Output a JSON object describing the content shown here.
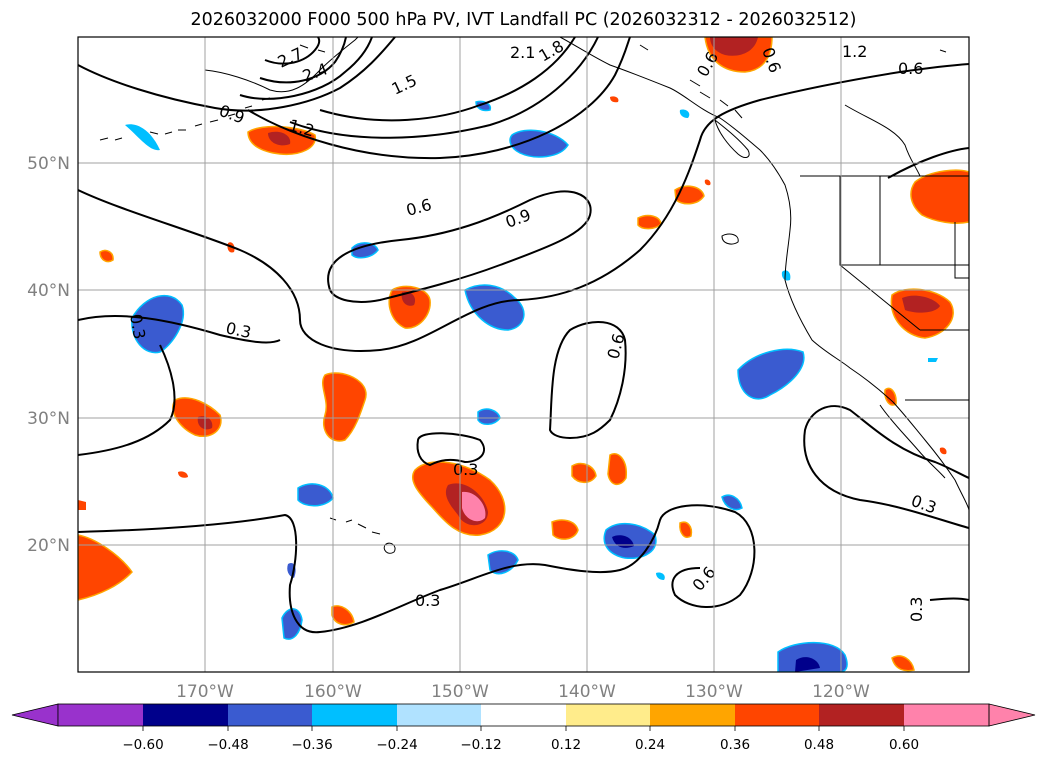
{
  "title": "2026032000 F000 500 hPa PV, IVT Landfall PC (2026032312 - 2026032512)",
  "map": {
    "lon_range": [
      -180,
      -110
    ],
    "lat_range": [
      10,
      60
    ],
    "lon_ticks": [
      {
        "lon": -170,
        "label": "170°W"
      },
      {
        "lon": -160,
        "label": "160°W"
      },
      {
        "lon": -150,
        "label": "150°W"
      },
      {
        "lon": -140,
        "label": "140°W"
      },
      {
        "lon": -130,
        "label": "130°W"
      },
      {
        "lon": -120,
        "label": "120°W"
      }
    ],
    "lat_ticks": [
      {
        "lat": 20,
        "label": "20°N"
      },
      {
        "lat": 30,
        "label": "30°N"
      },
      {
        "lat": 40,
        "label": "40°N"
      },
      {
        "lat": 50,
        "label": "50°N"
      }
    ],
    "gridlines": true,
    "contour_labels": [
      "2.7",
      "2.4",
      "2.1",
      "1.8",
      "1.5",
      "1.2",
      "0.9",
      "0.6",
      "0.3"
    ]
  },
  "colorbar": {
    "extend": "both",
    "ticks": [
      "−0.60",
      "−0.48",
      "−0.36",
      "−0.24",
      "−0.12",
      "0.12",
      "0.24",
      "0.36",
      "0.48",
      "0.60"
    ],
    "colors": [
      "#9932cc",
      "#00008b",
      "#3a5bd0",
      "#00bfff",
      "#b0e2ff",
      "#ffffff",
      "#ffec8b",
      "#ffa500",
      "#ff4500",
      "#b22222",
      "#ff82ab"
    ]
  }
}
